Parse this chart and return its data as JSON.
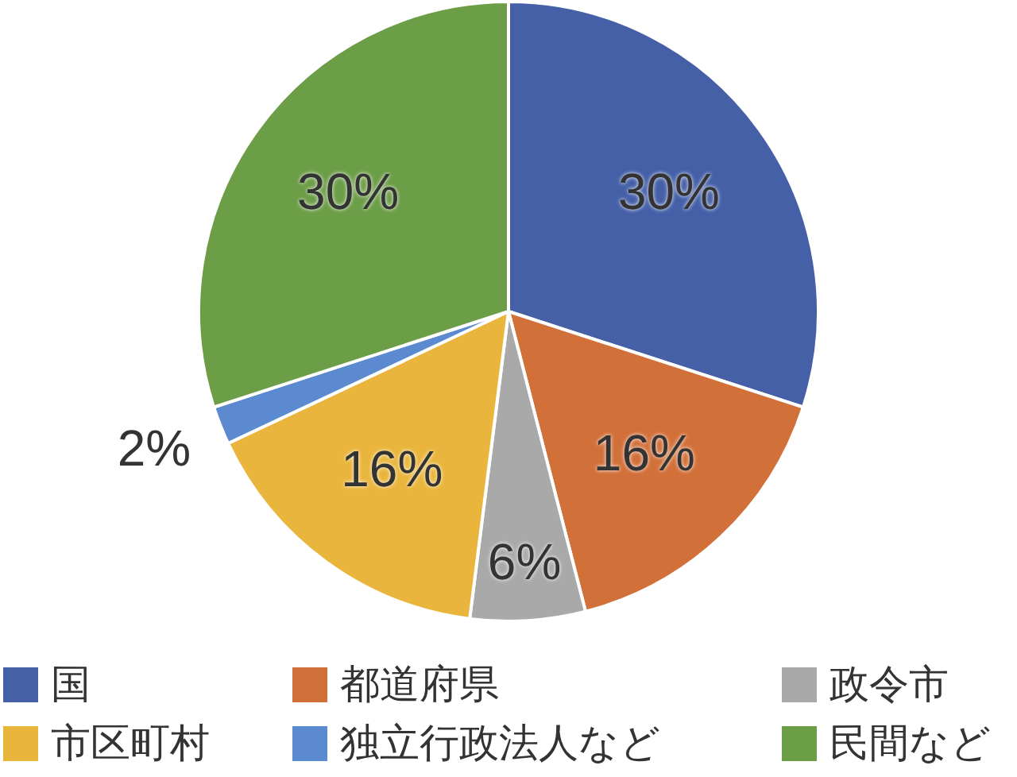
{
  "chart_data": {
    "type": "pie",
    "categories": [
      "国",
      "都道府県",
      "政令市",
      "市区町村",
      "独立行政法人など",
      "民間など"
    ],
    "values": [
      30,
      16,
      6,
      16,
      2,
      30
    ],
    "colors": [
      "#4660a8",
      "#d2703a",
      "#a9a9a9",
      "#e9b53c",
      "#5b8ad0",
      "#6c9d47"
    ],
    "value_labels": [
      "30%",
      "16%",
      "6%",
      "16%",
      "2%",
      "30%"
    ],
    "legend": "bottom"
  }
}
